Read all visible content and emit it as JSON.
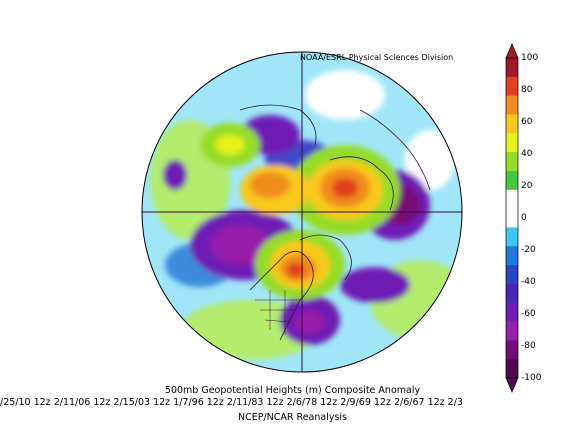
{
  "map": {
    "credit": "NOAA/ESRL Physical Sciences Division",
    "title_line": "500mb Geopotential Heights (m)    Composite Anomaly",
    "dates_line": "/25/10 12z 2/11/06 12z 2/15/03 12z 1/7/96 12z 2/11/83 12z 2/6/78 12z 2/9/69 12z 2/6/67 12z 2/3",
    "source_line": "NCEP/NCAR Reanalysis",
    "projection": "north-polar-stereographic"
  },
  "colorbar": {
    "labels": [
      "100",
      "80",
      "60",
      "40",
      "20",
      "0",
      "-20",
      "-40",
      "-60",
      "-80",
      "-100"
    ],
    "colors": [
      "#a0192a",
      "#e0401e",
      "#f08c1e",
      "#f8c81e",
      "#e6f01e",
      "#96dc28",
      "#46c83c",
      "#ffffff",
      "#ffffff",
      "#3cc8f0",
      "#1e78dc",
      "#2846c8",
      "#4628b4",
      "#6e1eb4",
      "#961eaa",
      "#780a78",
      "#500a50"
    ]
  },
  "fields": {
    "background": "#a0e6f8",
    "anomalies": [
      {
        "name": "pacific-high",
        "sign": "positive"
      },
      {
        "name": "north-atlantic-high",
        "sign": "positive"
      },
      {
        "name": "arctic-high",
        "sign": "positive"
      },
      {
        "name": "siberia-low",
        "sign": "negative"
      },
      {
        "name": "eastern-us-low",
        "sign": "negative"
      },
      {
        "name": "europe-low",
        "sign": "negative"
      },
      {
        "name": "north-pacific-low",
        "sign": "negative"
      }
    ]
  }
}
